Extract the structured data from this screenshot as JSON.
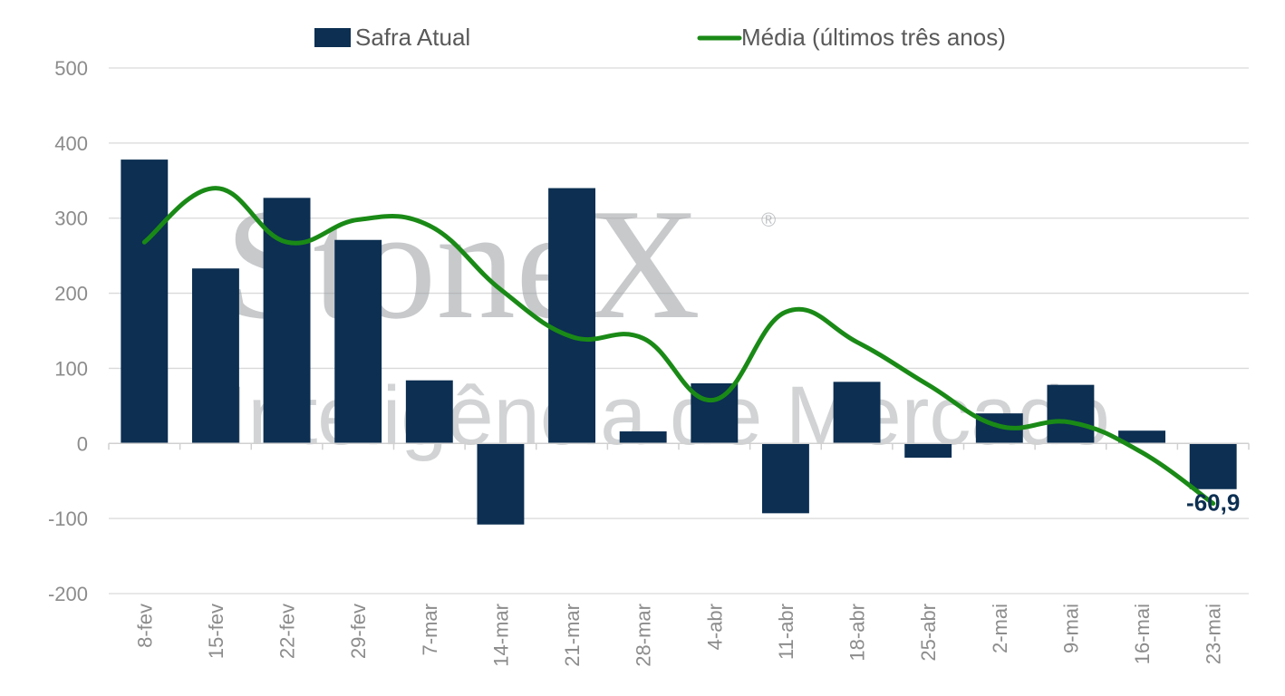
{
  "watermark": {
    "brand": "StoneX",
    "registered": "®",
    "tagline": "Inteligência de Mercado"
  },
  "chart_data": {
    "type": "bar",
    "title": "",
    "xlabel": "",
    "ylabel": "",
    "ylim": [
      -200,
      500
    ],
    "yticks": [
      500,
      400,
      300,
      200,
      100,
      0,
      -100,
      -200
    ],
    "grid": true,
    "legend_position": "top",
    "categories": [
      "8-fev",
      "15-fev",
      "22-fev",
      "29-fev",
      "7-mar",
      "14-mar",
      "21-mar",
      "28-mar",
      "4-abr",
      "11-abr",
      "18-abr",
      "25-abr",
      "2-mai",
      "9-mai",
      "16-mai",
      "23-mai"
    ],
    "series": [
      {
        "name": "Safra Atual",
        "type": "bar",
        "color": "#0c2f52",
        "values": [
          378,
          233,
          327,
          271,
          84,
          -108,
          340,
          16,
          80,
          -93,
          82,
          -19,
          40,
          78,
          17,
          -60.9
        ]
      },
      {
        "name": "Média (últimos três anos)",
        "type": "line",
        "color": "#1a8a16",
        "values": [
          268,
          340,
          268,
          298,
          290,
          205,
          142,
          140,
          58,
          175,
          135,
          78,
          23,
          28,
          -12,
          -80
        ]
      }
    ],
    "annotations": [
      {
        "category": "23-mai",
        "text": "-60,9"
      }
    ]
  }
}
